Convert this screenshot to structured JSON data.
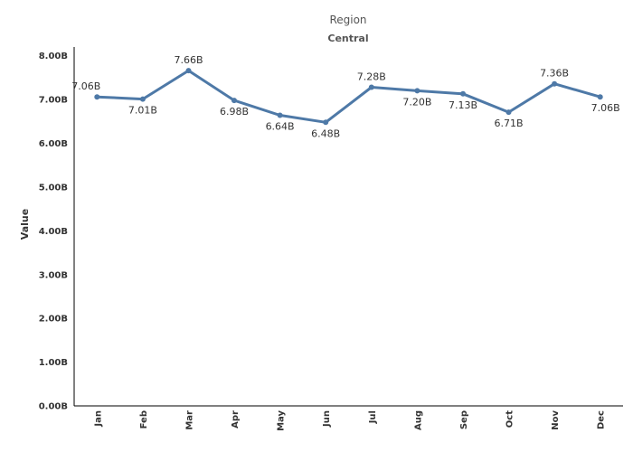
{
  "chart_data": {
    "type": "line",
    "title": "Region",
    "subtitle": "Central",
    "xlabel": "",
    "ylabel": "Value",
    "categories": [
      "Jan",
      "Feb",
      "Mar",
      "Apr",
      "May",
      "Jun",
      "Jul",
      "Aug",
      "Sep",
      "Oct",
      "Nov",
      "Dec"
    ],
    "series": [
      {
        "name": "",
        "values": [
          7.06,
          7.01,
          7.66,
          6.98,
          6.64,
          6.48,
          7.28,
          7.2,
          7.13,
          6.71,
          7.36,
          7.06
        ],
        "labels": [
          "7.06B",
          "7.01B",
          "7.66B",
          "6.98B",
          "6.64B",
          "6.48B",
          "7.28B",
          "7.20B",
          "7.13B",
          "6.71B",
          "7.36B",
          "7.06B"
        ],
        "color": "#4e79a7"
      }
    ],
    "yticks": [
      0,
      1,
      2,
      3,
      4,
      5,
      6,
      7,
      8
    ],
    "ytick_labels": [
      "0.00B",
      "1.00B",
      "2.00B",
      "3.00B",
      "4.00B",
      "5.00B",
      "6.00B",
      "7.00B",
      "8.00B"
    ],
    "ylim": [
      0,
      8.2
    ],
    "unit": "B",
    "grid": false,
    "legend": "none"
  }
}
